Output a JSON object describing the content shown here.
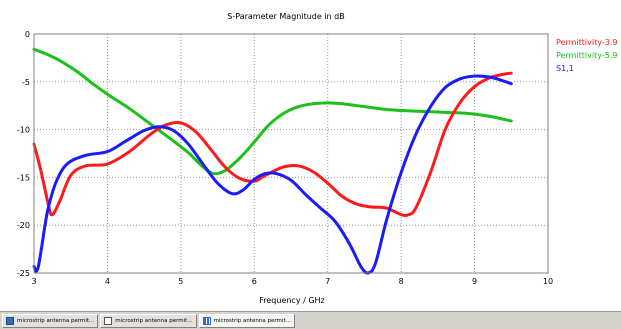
{
  "chart_data": {
    "type": "line",
    "title": "S-Parameter Magnitude in dB",
    "xlabel": "Frequency / GHz",
    "ylabel": "",
    "xlim": [
      3,
      10
    ],
    "ylim": [
      -25,
      0
    ],
    "xticks": [
      3,
      4,
      5,
      6,
      7,
      8,
      9,
      10
    ],
    "yticks": [
      0,
      -5,
      -10,
      -15,
      -20,
      -25
    ],
    "grid": true,
    "legend_position": "right",
    "series": [
      {
        "name": "Permittivity-3.9",
        "color": "#ff1a1a",
        "x": [
          3.0,
          3.1,
          3.2,
          3.25,
          3.35,
          3.5,
          3.7,
          4.0,
          4.3,
          4.6,
          4.8,
          5.0,
          5.2,
          5.4,
          5.6,
          5.8,
          6.0,
          6.1,
          6.2,
          6.4,
          6.6,
          6.8,
          7.0,
          7.2,
          7.4,
          7.6,
          7.8,
          8.0,
          8.1,
          8.2,
          8.4,
          8.6,
          8.8,
          9.0,
          9.2,
          9.4,
          9.5
        ],
        "y": [
          -11.5,
          -14.5,
          -18.0,
          -18.9,
          -17.5,
          -14.8,
          -13.8,
          -13.6,
          -12.3,
          -10.4,
          -9.5,
          -9.3,
          -10.2,
          -12.0,
          -13.9,
          -15.1,
          -15.4,
          -15.0,
          -14.6,
          -13.9,
          -13.8,
          -14.4,
          -15.6,
          -17.0,
          -17.8,
          -18.1,
          -18.2,
          -18.9,
          -18.9,
          -18.2,
          -14.5,
          -10.0,
          -7.2,
          -5.5,
          -4.6,
          -4.2,
          -4.1
        ]
      },
      {
        "name": "Permittivity-5.9",
        "color": "#19c119",
        "x": [
          3.0,
          3.2,
          3.4,
          3.6,
          3.8,
          4.0,
          4.3,
          4.6,
          4.9,
          5.1,
          5.3,
          5.45,
          5.6,
          5.8,
          6.0,
          6.2,
          6.4,
          6.6,
          6.8,
          7.0,
          7.2,
          7.4,
          7.6,
          7.8,
          8.0,
          8.3,
          8.6,
          8.9,
          9.2,
          9.5
        ],
        "y": [
          -1.6,
          -2.2,
          -3.0,
          -4.0,
          -5.2,
          -6.3,
          -7.8,
          -9.5,
          -11.2,
          -12.4,
          -13.9,
          -14.6,
          -14.3,
          -13.0,
          -11.3,
          -9.5,
          -8.3,
          -7.6,
          -7.3,
          -7.2,
          -7.3,
          -7.5,
          -7.7,
          -7.9,
          -8.0,
          -8.1,
          -8.2,
          -8.3,
          -8.6,
          -9.1
        ]
      },
      {
        "name": "S1,1",
        "color": "#1a1aff",
        "x": [
          3.0,
          3.03,
          3.06,
          3.1,
          3.15,
          3.2,
          3.3,
          3.45,
          3.7,
          4.0,
          4.25,
          4.5,
          4.7,
          4.9,
          5.1,
          5.3,
          5.5,
          5.7,
          5.85,
          6.0,
          6.15,
          6.3,
          6.5,
          6.7,
          6.9,
          7.1,
          7.3,
          7.45,
          7.55,
          7.65,
          7.8,
          8.0,
          8.2,
          8.4,
          8.6,
          8.8,
          9.0,
          9.2,
          9.35,
          9.5
        ],
        "y": [
          -24.3,
          -24.8,
          -24.3,
          -22.5,
          -20.0,
          -18.0,
          -15.5,
          -13.6,
          -12.7,
          -12.3,
          -11.2,
          -10.1,
          -9.7,
          -10.1,
          -11.5,
          -13.6,
          -15.6,
          -16.7,
          -16.3,
          -15.2,
          -14.6,
          -14.6,
          -15.3,
          -16.8,
          -18.2,
          -19.6,
          -22.0,
          -24.3,
          -25.0,
          -24.0,
          -19.5,
          -14.5,
          -10.5,
          -7.6,
          -5.6,
          -4.7,
          -4.4,
          -4.5,
          -4.8,
          -5.2
        ]
      }
    ]
  },
  "taskbar": {
    "items": [
      {
        "label": "microstrip antenna permit...",
        "icon": "app-icon"
      },
      {
        "label": "microstrip antenna permit...",
        "icon": "document-icon"
      },
      {
        "label": "microstrip antenna permit...",
        "icon": "chart-icon"
      }
    ]
  }
}
